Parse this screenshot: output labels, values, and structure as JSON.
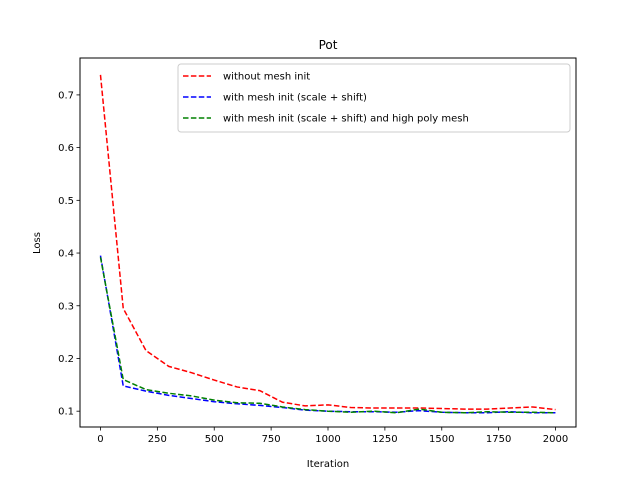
{
  "chart_data": {
    "type": "line",
    "title": "Pot",
    "xlabel": "Iteration",
    "ylabel": "Loss",
    "xlim": [
      -90,
      2090
    ],
    "ylim": [
      0.07,
      0.77
    ],
    "xticks": [
      0,
      250,
      500,
      750,
      1000,
      1250,
      1500,
      1750,
      2000
    ],
    "yticks": [
      0.1,
      0.2,
      0.3,
      0.4,
      0.5,
      0.6,
      0.7
    ],
    "grid": false,
    "legend_position": "top-right",
    "series": [
      {
        "name": "without mesh init",
        "color": "#ff0000",
        "style": "dashed",
        "x": [
          0,
          100,
          200,
          300,
          400,
          500,
          600,
          700,
          800,
          900,
          1000,
          1100,
          1200,
          1300,
          1400,
          1500,
          1600,
          1700,
          1800,
          1900,
          2000
        ],
        "y": [
          0.738,
          0.295,
          0.215,
          0.185,
          0.173,
          0.159,
          0.146,
          0.139,
          0.117,
          0.11,
          0.112,
          0.107,
          0.106,
          0.106,
          0.106,
          0.105,
          0.104,
          0.104,
          0.106,
          0.108,
          0.103
        ]
      },
      {
        "name": "with mesh init (scale + shift)",
        "color": "#0000ff",
        "style": "dashed",
        "x": [
          0,
          100,
          200,
          300,
          400,
          500,
          600,
          700,
          800,
          900,
          1000,
          1100,
          1200,
          1300,
          1400,
          1500,
          1600,
          1700,
          1800,
          1900,
          2000
        ],
        "y": [
          0.395,
          0.148,
          0.138,
          0.13,
          0.124,
          0.118,
          0.114,
          0.111,
          0.107,
          0.102,
          0.1,
          0.099,
          0.099,
          0.098,
          0.101,
          0.098,
          0.097,
          0.097,
          0.099,
          0.097,
          0.097
        ]
      },
      {
        "name": "with mesh init (scale + shift) and high poly mesh",
        "color": "#008000",
        "style": "dashed",
        "x": [
          0,
          100,
          200,
          300,
          400,
          500,
          600,
          700,
          800,
          900,
          1000,
          1100,
          1200,
          1300,
          1400,
          1500,
          1600,
          1700,
          1800,
          1900,
          2000
        ],
        "y": [
          0.392,
          0.16,
          0.141,
          0.134,
          0.129,
          0.121,
          0.116,
          0.115,
          0.108,
          0.103,
          0.1,
          0.098,
          0.1,
          0.097,
          0.104,
          0.098,
          0.097,
          0.099,
          0.098,
          0.098,
          0.097
        ]
      }
    ]
  }
}
